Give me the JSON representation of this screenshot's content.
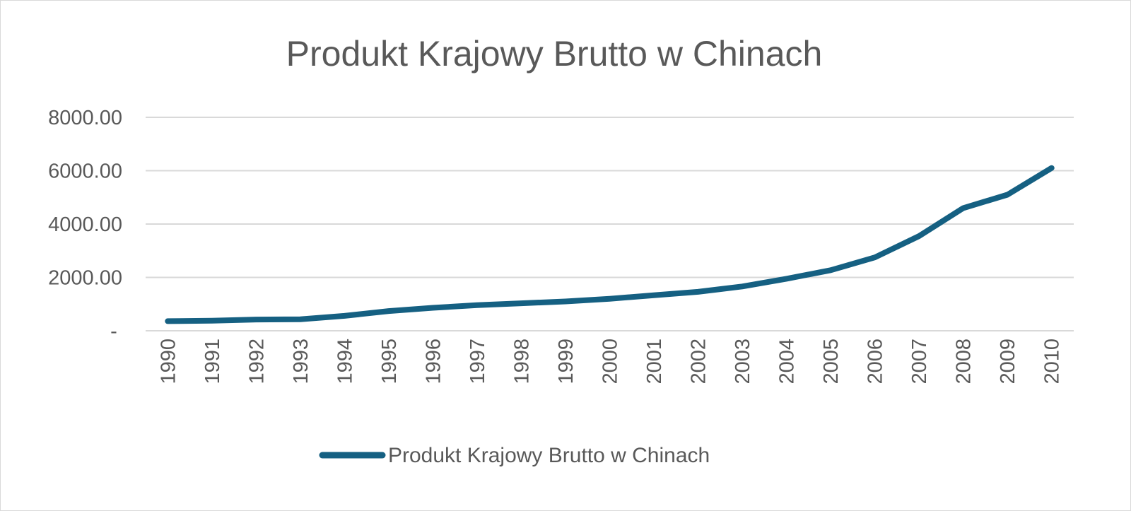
{
  "chart_data": {
    "type": "line",
    "title": "Produkt Krajowy Brutto w Chinach",
    "xlabel": "",
    "ylabel": "",
    "categories": [
      "1990",
      "1991",
      "1992",
      "1993",
      "1994",
      "1995",
      "1996",
      "1997",
      "1998",
      "1999",
      "2000",
      "2001",
      "2002",
      "2003",
      "2004",
      "2005",
      "2006",
      "2007",
      "2008",
      "2009",
      "2010"
    ],
    "series": [
      {
        "name": "Produkt Krajowy Brutto w Chinach",
        "color": "#156082",
        "values": [
          360,
          380,
          420,
          430,
          560,
          740,
          860,
          960,
          1030,
          1100,
          1200,
          1330,
          1460,
          1660,
          1950,
          2270,
          2750,
          3550,
          4600,
          5100,
          6100
        ]
      }
    ],
    "ylim": [
      0,
      8000
    ],
    "y_ticks": [
      {
        "value": 0,
        "label": "-"
      },
      {
        "value": 2000,
        "label": "2000.00"
      },
      {
        "value": 4000,
        "label": "4000.00"
      },
      {
        "value": 6000,
        "label": "6000.00"
      },
      {
        "value": 8000,
        "label": "8000.00"
      }
    ],
    "grid": true,
    "x_tick_rotation": "vertical",
    "legend_position": "bottom"
  }
}
